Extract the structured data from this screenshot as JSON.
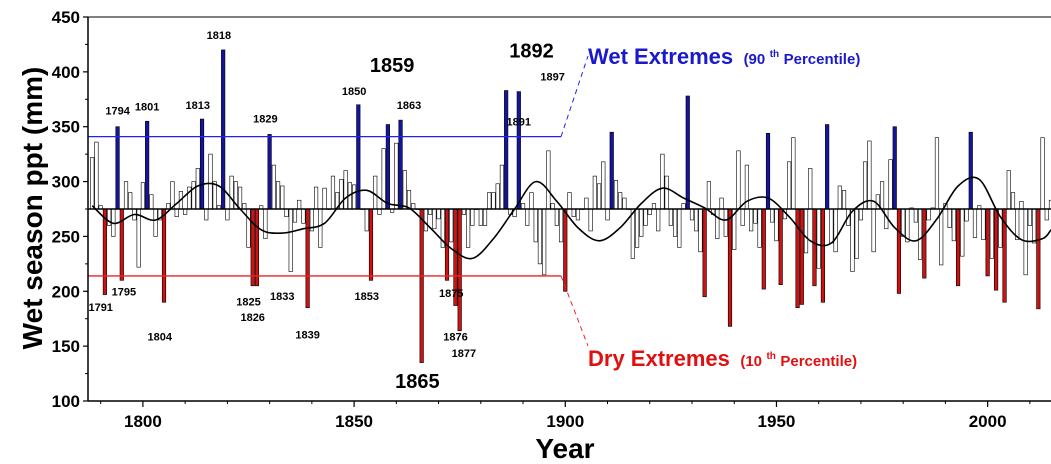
{
  "chart_data": {
    "type": "bar",
    "xlabel": "Year",
    "ylabel": "Wet season ppt (mm)",
    "xlim": [
      1787,
      2015
    ],
    "ylim": [
      100,
      450
    ],
    "xticks": [
      "1800",
      "1850",
      "1900",
      "1950",
      "2000"
    ],
    "yticks": [
      "100",
      "150",
      "200",
      "250",
      "300",
      "350",
      "400",
      "450"
    ],
    "baseline": 275,
    "wet_threshold": 341,
    "dry_threshold": 214,
    "wet_label": {
      "main": "Wet Extremes",
      "open": "(90",
      "sup": "th",
      "rest": " Percentile)"
    },
    "dry_label": {
      "main": "Dry Extremes",
      "open": "(10",
      "sup": "th",
      "rest": " Percentile)"
    },
    "colors": {
      "wet": "#1414a0",
      "dry": "#cc1212",
      "wet_text": "#1a1acc",
      "dry_text": "#e01010",
      "normal": "#ffffff"
    },
    "start_year": 1788,
    "values": [
      322,
      336,
      278,
      197,
      260,
      250,
      350,
      210,
      300,
      290,
      265,
      222,
      299,
      355,
      288,
      250,
      265,
      190,
      280,
      300,
      268,
      291,
      270,
      295,
      300,
      312,
      357,
      265,
      325,
      300,
      278,
      420,
      265,
      305,
      300,
      295,
      280,
      240,
      205,
      205,
      278,
      248,
      343,
      315,
      300,
      296,
      268,
      218,
      263,
      283,
      262,
      185,
      255,
      295,
      240,
      294,
      275,
      305,
      290,
      302,
      310,
      299,
      297,
      370,
      275,
      255,
      210,
      305,
      270,
      330,
      352,
      272,
      335,
      356,
      310,
      292,
      280,
      275,
      135,
      255,
      270,
      257,
      266,
      240,
      210,
      245,
      187,
      164,
      270,
      240,
      260,
      275,
      260,
      260,
      290,
      290,
      298,
      315,
      383,
      270,
      268,
      382,
      280,
      260,
      290,
      245,
      225,
      215,
      328,
      280,
      260,
      245,
      200,
      290,
      268,
      265,
      275,
      285,
      255,
      305,
      298,
      318,
      265,
      345,
      301,
      290,
      285,
      275,
      230,
      240,
      250,
      260,
      270,
      280,
      255,
      325,
      305,
      260,
      250,
      240,
      280,
      378,
      265,
      255,
      236,
      195,
      300,
      270,
      248,
      285,
      250,
      168,
      238,
      328,
      260,
      315,
      255,
      262,
      240,
      202,
      344,
      263,
      246,
      206,
      266,
      318,
      340,
      185,
      188,
      235,
      312,
      205,
      221,
      190,
      352,
      244,
      236,
      296,
      292,
      260,
      218,
      230,
      265,
      318,
      337,
      236,
      288,
      300,
      257,
      320,
      350,
      198,
      250,
      245,
      276,
      263,
      229,
      212,
      265,
      276,
      340,
      224,
      280,
      258,
      246,
      205,
      232,
      264,
      345,
      249,
      278,
      247,
      214,
      230,
      201,
      240,
      190,
      310,
      290,
      247,
      282,
      215,
      260,
      244,
      184,
      340,
      265,
      283,
      282
    ],
    "smooth_x": [
      1788,
      1793,
      1798,
      1803,
      1808,
      1813,
      1818,
      1823,
      1828,
      1833,
      1838,
      1843,
      1848,
      1853,
      1858,
      1863,
      1868,
      1873,
      1878,
      1883,
      1888,
      1893,
      1898,
      1903,
      1908,
      1913,
      1918,
      1923,
      1928,
      1933,
      1938,
      1943,
      1948,
      1953,
      1958,
      1963,
      1968,
      1973,
      1978,
      1983,
      1988,
      1993,
      1998,
      2003,
      2008,
      2013,
      2015
    ],
    "smooth_y": [
      278,
      262,
      270,
      265,
      280,
      296,
      296,
      275,
      256,
      253,
      257,
      262,
      285,
      292,
      280,
      276,
      258,
      239,
      230,
      248,
      275,
      300,
      282,
      258,
      246,
      258,
      280,
      294,
      285,
      276,
      265,
      282,
      285,
      268,
      246,
      244,
      273,
      282,
      258,
      246,
      266,
      296,
      302,
      268,
      247,
      248,
      256
    ],
    "wet_labels": [
      {
        "text": "1794",
        "year": 1794,
        "y": 361,
        "size": "small"
      },
      {
        "text": "1801",
        "year": 1801,
        "y": 365,
        "size": "small"
      },
      {
        "text": "1813",
        "year": 1813,
        "y": 366,
        "size": "small"
      },
      {
        "text": "1818",
        "year": 1818,
        "y": 430,
        "size": "small"
      },
      {
        "text": "1829",
        "year": 1829,
        "y": 354,
        "size": "small"
      },
      {
        "text": "1850",
        "year": 1850,
        "y": 379,
        "size": "small"
      },
      {
        "text": "1859",
        "year": 1859,
        "y": 400,
        "size": "large"
      },
      {
        "text": "1863",
        "year": 1863,
        "y": 366,
        "size": "small"
      },
      {
        "text": "1891",
        "year": 1889,
        "y": 351,
        "size": "small"
      },
      {
        "text": "1892",
        "year": 1892,
        "y": 413,
        "size": "large"
      },
      {
        "text": "1897",
        "year": 1897,
        "y": 392,
        "size": "small"
      }
    ],
    "dry_labels": [
      {
        "text": "1791",
        "year": 1790,
        "y": 182,
        "size": "small"
      },
      {
        "text": "1795",
        "year": 1795.5,
        "y": 196,
        "size": "small"
      },
      {
        "text": "1804",
        "year": 1804,
        "y": 155,
        "size": "small"
      },
      {
        "text": "1825",
        "year": 1825,
        "y": 187,
        "size": "small"
      },
      {
        "text": "1826",
        "year": 1826,
        "y": 173,
        "size": "small"
      },
      {
        "text": "1833",
        "year": 1833,
        "y": 192,
        "size": "small"
      },
      {
        "text": "1839",
        "year": 1839,
        "y": 157,
        "size": "small"
      },
      {
        "text": "1853",
        "year": 1853,
        "y": 192,
        "size": "small"
      },
      {
        "text": "1865",
        "year": 1865,
        "y": 112,
        "size": "large"
      },
      {
        "text": "1875",
        "year": 1873,
        "y": 195,
        "size": "small"
      },
      {
        "text": "1876",
        "year": 1874,
        "y": 155,
        "size": "small"
      },
      {
        "text": "1877",
        "year": 1876,
        "y": 140,
        "size": "small"
      }
    ]
  }
}
